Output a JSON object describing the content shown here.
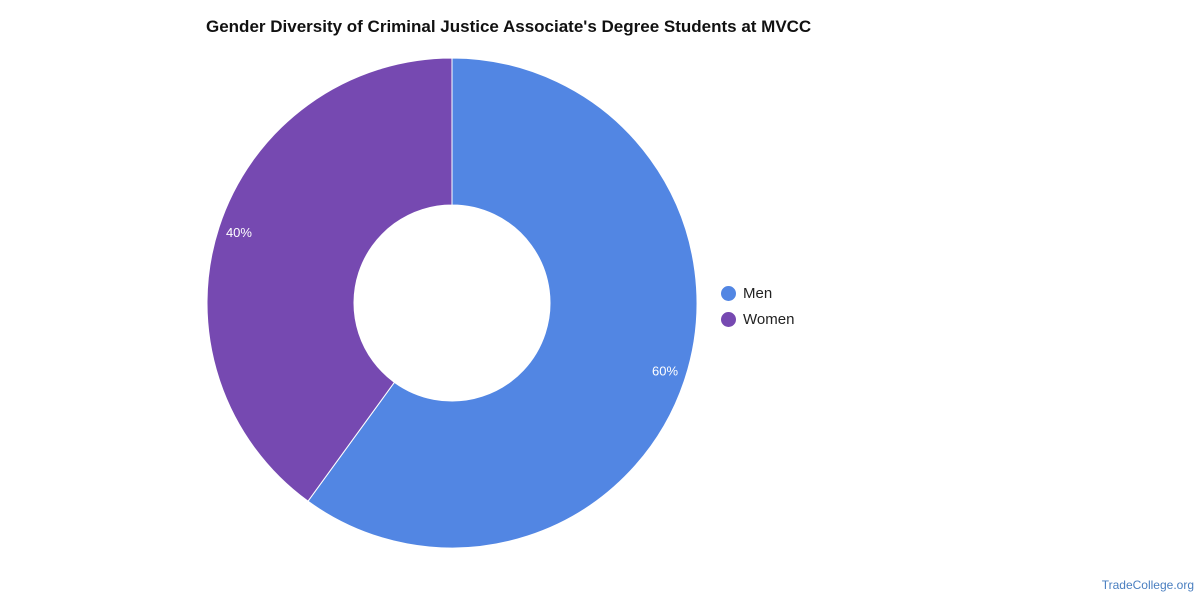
{
  "chart_data": {
    "type": "pie",
    "title": "Gender Diversity of Criminal Justice Associate's Degree Students at MVCC",
    "categories": [
      "Men",
      "Women"
    ],
    "values": [
      60,
      40
    ],
    "value_labels": [
      "60%",
      "40%"
    ],
    "colors": [
      "#5286e3",
      "#7649b1"
    ],
    "donut": true,
    "legend_position": "right"
  },
  "legend": {
    "items": [
      {
        "label": "Men",
        "color": "#5286e3"
      },
      {
        "label": "Women",
        "color": "#7649b1"
      }
    ]
  },
  "watermark": "TradeCollege.org"
}
